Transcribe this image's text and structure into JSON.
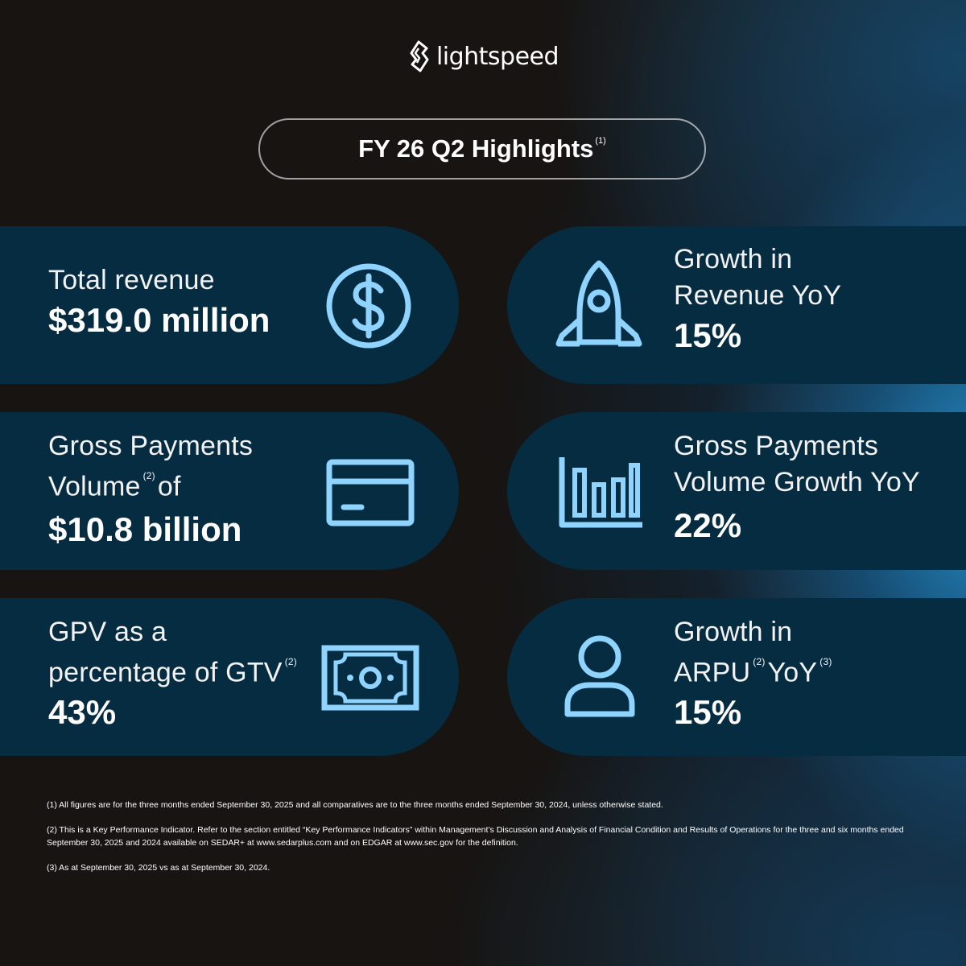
{
  "brand": {
    "name": "lightspeed",
    "icon": "flame-logo-icon"
  },
  "title": {
    "text": "FY 26 Q2 Highlights",
    "note": "(1)"
  },
  "colors": {
    "accent": "#8fd3ff",
    "card": "#062c42"
  },
  "cards": [
    {
      "label_lines": [
        "Total revenue"
      ],
      "value": "$319.0 million",
      "icon": "dollar-coin-icon"
    },
    {
      "label_lines": [
        "Growth in",
        "Revenue YoY"
      ],
      "value": "15%",
      "icon": "rocket-icon"
    },
    {
      "label_l1": "Gross Payments",
      "label_l2": "Volume",
      "label_l2_note": "(2)",
      "label_l2_end": "of",
      "value": "$10.8 billion",
      "icon": "credit-card-icon"
    },
    {
      "label_lines": [
        "Gross Payments",
        "Volume Growth YoY"
      ],
      "value": "22%",
      "icon": "bar-chart-icon"
    },
    {
      "label_l1": "GPV as a",
      "label_l2": "percentage of GTV",
      "label_l2_note": "(2)",
      "value": "43%",
      "icon": "banknote-icon"
    },
    {
      "label_l1": "Growth in",
      "label_l2": "ARPU",
      "label_l2_note": "(2)",
      "label_l2_mid": "YoY",
      "label_l2_note2": "(3)",
      "value": "15%",
      "icon": "user-icon"
    }
  ],
  "footnotes": [
    "(1) All figures are for the three months ended September 30, 2025 and all comparatives are to the three months ended September 30, 2024, unless otherwise stated.",
    "(2) This is a Key Performance Indicator. Refer to the section entitled “Key Performance Indicators” within Management’s Discussion and Analysis of Financial Condition and Results of Operations for the three and six months ended September 30, 2025 and 2024 available on SEDAR+ at www.sedarplus.com and on EDGAR at www.sec.gov for the definition.",
    "(3) As at September 30, 2025 vs as at September 30, 2024."
  ]
}
